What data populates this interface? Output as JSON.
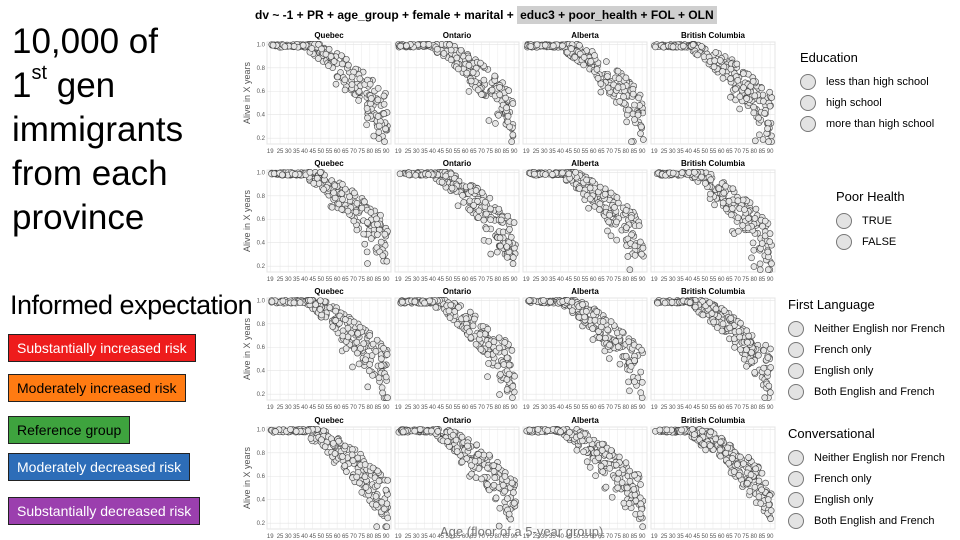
{
  "formula": {
    "plain": "dv ~ -1 + PR + age_group + female + marital +",
    "highlight": "educ3 + poor_health + FOL + OLN"
  },
  "title": {
    "line1": "10,000 of",
    "line2_a": "1",
    "line2_sup": "st",
    "line2_b": " gen",
    "line3": "immigrants",
    "line4": "from each",
    "line5": "province"
  },
  "expectation": {
    "title": "Informed expectation",
    "items": [
      {
        "label": "Substantially increased risk",
        "color": "#ee1c1c"
      },
      {
        "label": "Moderately increased risk",
        "color": "#ff7b12"
      },
      {
        "label": "Reference group",
        "color": "#3ea33e"
      },
      {
        "label": "Moderately decreased risk",
        "color": "#2d6db8"
      },
      {
        "label": "Substantially decreased risk",
        "color": "#9b3fae"
      }
    ]
  },
  "legends": {
    "education": {
      "title": "Education",
      "items": [
        "less than high school",
        "high school",
        "more than high school"
      ]
    },
    "poor_health": {
      "title": "Poor Health",
      "items": [
        "TRUE",
        "FALSE"
      ]
    },
    "first_language": {
      "title": "First Language",
      "items": [
        "Neither English nor French",
        "French only",
        "English only",
        "Both English and French"
      ]
    },
    "conversational": {
      "title": "Conversational",
      "items": [
        "Neither English nor French",
        "French only",
        "English only",
        "Both English and French"
      ]
    }
  },
  "chart_data": {
    "type": "scatter",
    "facets": [
      "Quebec",
      "Ontario",
      "Alberta",
      "British Columbia"
    ],
    "rows": 4,
    "ylabel": "Alive in X years",
    "xlabel": "Age (floor of a 5-year group)",
    "x_ticks": [
      19,
      25,
      30,
      35,
      40,
      45,
      50,
      55,
      60,
      65,
      70,
      75,
      80,
      85,
      90
    ],
    "y_ticks": [
      1.0,
      0.8,
      0.6,
      0.4,
      0.2
    ],
    "ylim": [
      0.15,
      1.02
    ],
    "xlim": [
      17,
      93
    ],
    "marker": {
      "fill": "#e6e6e6",
      "stroke": "#444"
    },
    "grid": true
  }
}
